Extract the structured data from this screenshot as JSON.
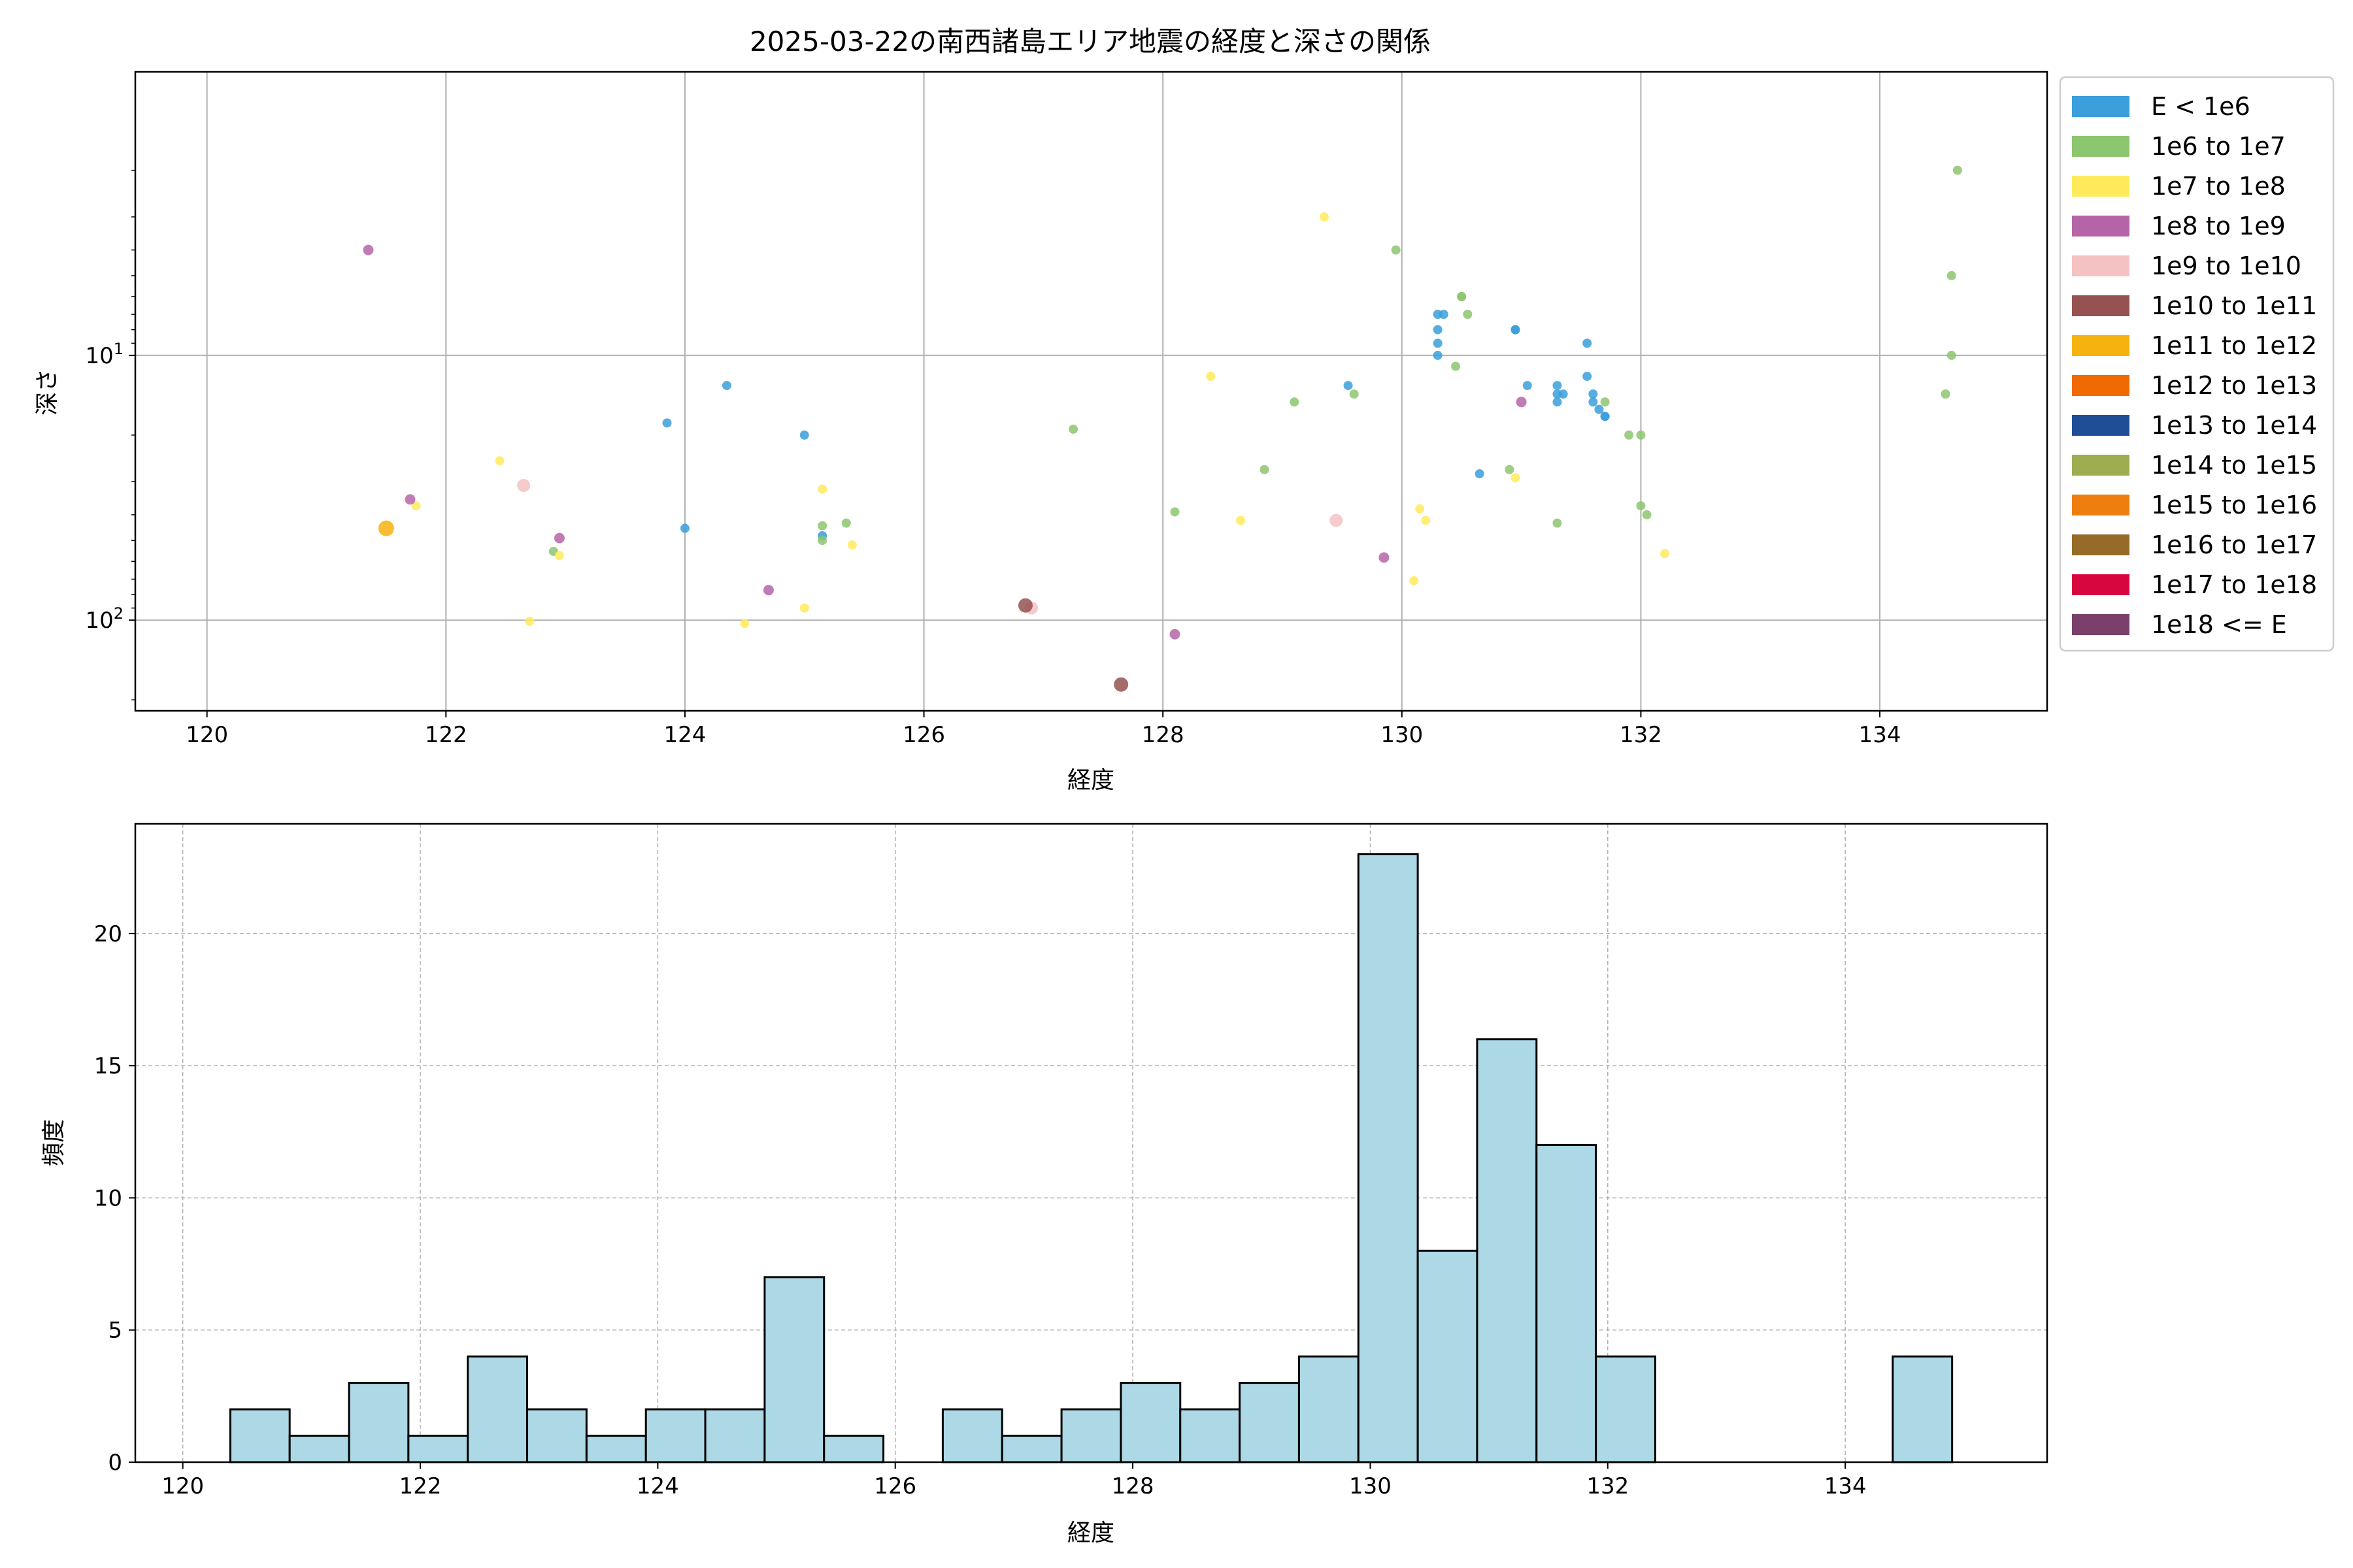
{
  "chart_data": [
    {
      "type": "scatter",
      "title": "2025-03-22の南西諸島エリア地震の経度と深さの関係",
      "xlabel": "経度",
      "ylabel": "深さ",
      "xlim": [
        119.4,
        135.4
      ],
      "ylim": [
        220,
        0.85
      ],
      "y_scale": "log",
      "y_inverted": true,
      "x_ticks": [
        "120",
        "122",
        "124",
        "126",
        "128",
        "130",
        "132",
        "134"
      ],
      "x_tick_values": [
        120,
        122,
        124,
        126,
        128,
        130,
        132,
        134
      ],
      "y_ticks": [
        {
          "base": "10",
          "exp": "1",
          "value": 10
        },
        {
          "base": "10",
          "exp": "2",
          "value": 100
        }
      ],
      "grid": true,
      "legend_position": "outside-right",
      "legend": [
        {
          "label": "E < 1e6",
          "color": "#3a9fdb"
        },
        {
          "label": "1e6 to 1e7",
          "color": "#8cc66e"
        },
        {
          "label": "1e7 to 1e8",
          "color": "#ffea5c"
        },
        {
          "label": "1e8 to 1e9",
          "color": "#b565a7"
        },
        {
          "label": "1e9 to 1e10",
          "color": "#f4c2c2"
        },
        {
          "label": "1e10 to 1e11",
          "color": "#955251"
        },
        {
          "label": "1e11 to 1e12",
          "color": "#f6b30f"
        },
        {
          "label": "1e12 to 1e13",
          "color": "#ef6a00"
        },
        {
          "label": "1e13 to 1e14",
          "color": "#1f4e96"
        },
        {
          "label": "1e14 to 1e15",
          "color": "#9dad4f"
        },
        {
          "label": "1e15 to 1e16",
          "color": "#ee7e0d"
        },
        {
          "label": "1e16 to 1e17",
          "color": "#966a27"
        },
        {
          "label": "1e17 to 1e18",
          "color": "#d7063e"
        },
        {
          "label": "1e18 <= E",
          "color": "#7a3f6b"
        }
      ],
      "series": [
        {
          "class": 0,
          "points": [
            [
              123.85,
              18
            ],
            [
              124.35,
              13
            ],
            [
              124.0,
              45
            ],
            [
              125.0,
              20
            ],
            [
              125.15,
              48
            ],
            [
              129.55,
              13
            ],
            [
              130.3,
              7
            ],
            [
              130.3,
              8
            ],
            [
              130.3,
              9
            ],
            [
              130.3,
              10
            ],
            [
              130.35,
              7
            ],
            [
              130.65,
              28
            ],
            [
              130.95,
              8
            ],
            [
              130.95,
              8
            ],
            [
              131.05,
              13
            ],
            [
              131.3,
              13
            ],
            [
              131.3,
              14
            ],
            [
              131.3,
              15
            ],
            [
              131.35,
              14
            ],
            [
              131.55,
              9
            ],
            [
              131.55,
              12
            ],
            [
              131.6,
              15
            ],
            [
              131.6,
              14
            ],
            [
              131.65,
              16
            ],
            [
              131.7,
              17
            ],
            [
              131.7,
              17
            ]
          ]
        },
        {
          "class": 1,
          "points": [
            [
              122.9,
              55
            ],
            [
              125.15,
              44
            ],
            [
              125.15,
              50
            ],
            [
              125.35,
              43
            ],
            [
              127.25,
              19
            ],
            [
              128.1,
              39
            ],
            [
              128.85,
              27
            ],
            [
              129.1,
              15
            ],
            [
              129.6,
              14
            ],
            [
              129.95,
              4
            ],
            [
              130.45,
              11
            ],
            [
              130.5,
              6
            ],
            [
              130.5,
              6
            ],
            [
              130.55,
              7
            ],
            [
              130.9,
              27
            ],
            [
              131.3,
              43
            ],
            [
              131.7,
              15
            ],
            [
              131.9,
              20
            ],
            [
              132.0,
              20
            ],
            [
              132.0,
              37
            ],
            [
              132.05,
              40
            ],
            [
              134.55,
              14
            ],
            [
              134.6,
              5
            ],
            [
              134.6,
              10
            ],
            [
              134.65,
              2
            ]
          ]
        },
        {
          "class": 2,
          "points": [
            [
              121.75,
              37
            ],
            [
              122.45,
              25
            ],
            [
              122.7,
              101
            ],
            [
              122.95,
              57
            ],
            [
              124.5,
              103
            ],
            [
              125.0,
              90
            ],
            [
              125.15,
              32
            ],
            [
              125.4,
              52
            ],
            [
              128.4,
              12
            ],
            [
              128.65,
              42
            ],
            [
              129.35,
              3
            ],
            [
              130.15,
              38
            ],
            [
              130.2,
              42
            ],
            [
              130.1,
              71
            ],
            [
              130.95,
              29
            ],
            [
              132.2,
              56
            ]
          ]
        },
        {
          "class": 3,
          "points": [
            [
              121.35,
              4
            ],
            [
              121.7,
              35
            ],
            [
              122.95,
              49
            ],
            [
              124.7,
              77
            ],
            [
              128.1,
              113
            ],
            [
              129.85,
              58
            ],
            [
              131.0,
              15
            ]
          ]
        },
        {
          "class": 4,
          "points": [
            [
              122.65,
              31
            ],
            [
              129.45,
              42
            ],
            [
              126.9,
              90
            ]
          ]
        },
        {
          "class": 5,
          "points": [
            [
              126.85,
              88
            ],
            [
              127.65,
              175
            ]
          ]
        },
        {
          "class": 6,
          "points": [
            [
              121.5,
              45
            ]
          ]
        }
      ]
    },
    {
      "type": "bar",
      "subtype": "histogram",
      "xlabel": "経度",
      "ylabel": "頻度",
      "xlim": [
        119.6,
        135.7
      ],
      "ylim": [
        0,
        24.15
      ],
      "bin_start": 120.4,
      "bin_width": 0.5,
      "values": [
        2,
        1,
        3,
        1,
        4,
        2,
        1,
        2,
        2,
        7,
        1,
        0,
        2,
        1,
        2,
        3,
        2,
        3,
        4,
        23,
        8,
        16,
        12,
        4,
        0,
        0,
        0,
        0,
        4
      ],
      "x_ticks": [
        "120",
        "122",
        "124",
        "126",
        "128",
        "130",
        "132",
        "134"
      ],
      "x_tick_values": [
        120,
        122,
        124,
        126,
        128,
        130,
        132,
        134
      ],
      "y_ticks": [
        "0",
        "5",
        "10",
        "15",
        "20"
      ],
      "y_tick_values": [
        0,
        5,
        10,
        15,
        20
      ],
      "bar_color": "#add8e6",
      "edge_color": "#000000",
      "grid": true
    }
  ]
}
